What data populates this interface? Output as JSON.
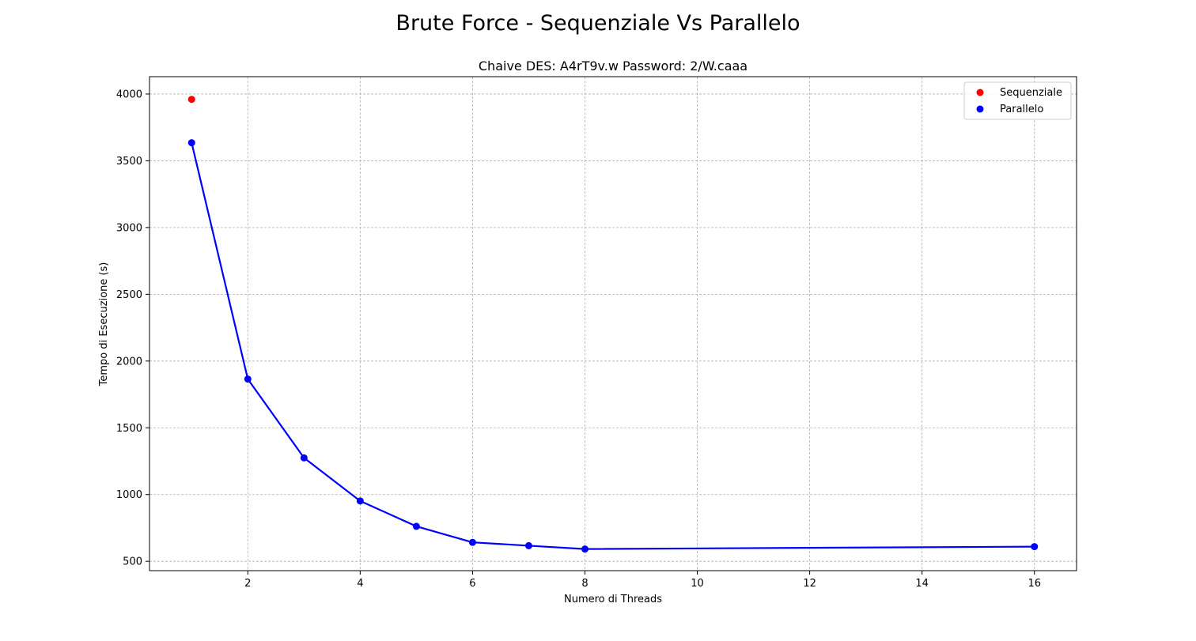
{
  "chart_data": {
    "type": "line",
    "title": "Brute Force - Sequenziale Vs Parallelo",
    "subtitle": "Chaive DES: A4rT9v.w Password: 2/W.caaa",
    "xlabel": "Numero di Threads",
    "ylabel": "Tempo di Esecuzione (s)",
    "xlim": [
      0.25,
      16.75
    ],
    "ylim": [
      430,
      4130
    ],
    "xticks": [
      2,
      4,
      6,
      8,
      10,
      12,
      14,
      16
    ],
    "yticks": [
      500,
      1000,
      1500,
      2000,
      2500,
      3000,
      3500,
      4000
    ],
    "grid": true,
    "legend_position": "top-right",
    "series": [
      {
        "name": "Sequenziale",
        "kind": "scatter",
        "color": "#ff0000",
        "x": [
          1
        ],
        "y": [
          3960
        ]
      },
      {
        "name": "Parallelo",
        "kind": "line+scatter",
        "color": "#0000ff",
        "x": [
          1,
          2,
          3,
          4,
          5,
          6,
          7,
          8,
          16
        ],
        "y": [
          3635,
          1865,
          1275,
          952,
          762,
          642,
          617,
          592,
          610
        ]
      }
    ]
  }
}
